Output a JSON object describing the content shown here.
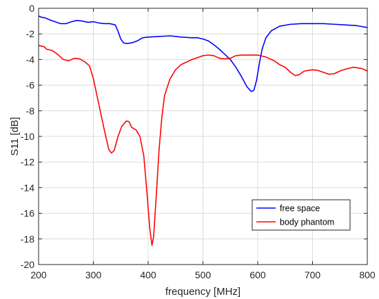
{
  "chart_data": {
    "type": "line",
    "title": "",
    "xlabel": "frequency [MHz]",
    "ylabel": "S11 [dB]",
    "xlim": [
      200,
      800
    ],
    "ylim": [
      -20,
      0
    ],
    "xticks": [
      200,
      300,
      400,
      500,
      600,
      700,
      800
    ],
    "yticks": [
      0,
      -2,
      -4,
      -6,
      -8,
      -10,
      -12,
      -14,
      -16,
      -18,
      -20
    ],
    "grid": true,
    "legend_position": "lower-right",
    "series": [
      {
        "name": "free space",
        "color": "#0000ff",
        "points": [
          [
            200,
            -0.6
          ],
          [
            205,
            -0.7
          ],
          [
            212,
            -0.75
          ],
          [
            220,
            -0.9
          ],
          [
            230,
            -1.05
          ],
          [
            240,
            -1.2
          ],
          [
            250,
            -1.2
          ],
          [
            260,
            -1.05
          ],
          [
            270,
            -0.95
          ],
          [
            280,
            -1.0
          ],
          [
            290,
            -1.1
          ],
          [
            300,
            -1.05
          ],
          [
            310,
            -1.15
          ],
          [
            320,
            -1.2
          ],
          [
            330,
            -1.2
          ],
          [
            340,
            -1.3
          ],
          [
            345,
            -1.8
          ],
          [
            350,
            -2.4
          ],
          [
            355,
            -2.7
          ],
          [
            360,
            -2.75
          ],
          [
            370,
            -2.7
          ],
          [
            380,
            -2.55
          ],
          [
            390,
            -2.3
          ],
          [
            400,
            -2.25
          ],
          [
            420,
            -2.2
          ],
          [
            440,
            -2.15
          ],
          [
            460,
            -2.25
          ],
          [
            480,
            -2.3
          ],
          [
            490,
            -2.3
          ],
          [
            500,
            -2.4
          ],
          [
            510,
            -2.55
          ],
          [
            520,
            -2.85
          ],
          [
            530,
            -3.2
          ],
          [
            540,
            -3.6
          ],
          [
            550,
            -4.0
          ],
          [
            560,
            -4.6
          ],
          [
            570,
            -5.3
          ],
          [
            580,
            -6.1
          ],
          [
            588,
            -6.5
          ],
          [
            593,
            -6.4
          ],
          [
            598,
            -5.6
          ],
          [
            603,
            -4.3
          ],
          [
            608,
            -3.2
          ],
          [
            615,
            -2.3
          ],
          [
            625,
            -1.75
          ],
          [
            640,
            -1.4
          ],
          [
            660,
            -1.25
          ],
          [
            680,
            -1.2
          ],
          [
            700,
            -1.2
          ],
          [
            720,
            -1.2
          ],
          [
            740,
            -1.25
          ],
          [
            760,
            -1.3
          ],
          [
            780,
            -1.35
          ],
          [
            800,
            -1.5
          ]
        ]
      },
      {
        "name": "body phantom",
        "color": "#ff0000",
        "points": [
          [
            200,
            -2.9
          ],
          [
            210,
            -3.0
          ],
          [
            215,
            -3.2
          ],
          [
            225,
            -3.3
          ],
          [
            235,
            -3.6
          ],
          [
            245,
            -4.0
          ],
          [
            255,
            -4.1
          ],
          [
            265,
            -3.9
          ],
          [
            275,
            -3.95
          ],
          [
            285,
            -4.2
          ],
          [
            293,
            -4.5
          ],
          [
            300,
            -5.5
          ],
          [
            310,
            -7.5
          ],
          [
            320,
            -9.5
          ],
          [
            328,
            -11.0
          ],
          [
            333,
            -11.3
          ],
          [
            338,
            -11.1
          ],
          [
            345,
            -10.0
          ],
          [
            352,
            -9.2
          ],
          [
            360,
            -8.8
          ],
          [
            365,
            -8.85
          ],
          [
            370,
            -9.3
          ],
          [
            378,
            -9.5
          ],
          [
            385,
            -10.0
          ],
          [
            392,
            -11.5
          ],
          [
            398,
            -14.5
          ],
          [
            403,
            -17.2
          ],
          [
            407,
            -18.5
          ],
          [
            410,
            -17.8
          ],
          [
            415,
            -14.5
          ],
          [
            420,
            -11.0
          ],
          [
            425,
            -8.5
          ],
          [
            430,
            -6.8
          ],
          [
            440,
            -5.5
          ],
          [
            450,
            -4.8
          ],
          [
            460,
            -4.4
          ],
          [
            470,
            -4.2
          ],
          [
            480,
            -4.0
          ],
          [
            490,
            -3.85
          ],
          [
            500,
            -3.7
          ],
          [
            510,
            -3.65
          ],
          [
            520,
            -3.7
          ],
          [
            530,
            -3.9
          ],
          [
            540,
            -3.95
          ],
          [
            550,
            -3.9
          ],
          [
            560,
            -3.7
          ],
          [
            570,
            -3.65
          ],
          [
            580,
            -3.65
          ],
          [
            600,
            -3.65
          ],
          [
            615,
            -3.8
          ],
          [
            630,
            -4.1
          ],
          [
            640,
            -4.4
          ],
          [
            650,
            -4.6
          ],
          [
            660,
            -5.0
          ],
          [
            668,
            -5.25
          ],
          [
            675,
            -5.2
          ],
          [
            685,
            -4.9
          ],
          [
            700,
            -4.8
          ],
          [
            710,
            -4.85
          ],
          [
            720,
            -5.0
          ],
          [
            730,
            -5.15
          ],
          [
            740,
            -5.1
          ],
          [
            750,
            -4.9
          ],
          [
            760,
            -4.75
          ],
          [
            775,
            -4.6
          ],
          [
            790,
            -4.7
          ],
          [
            800,
            -4.9
          ]
        ]
      }
    ]
  }
}
